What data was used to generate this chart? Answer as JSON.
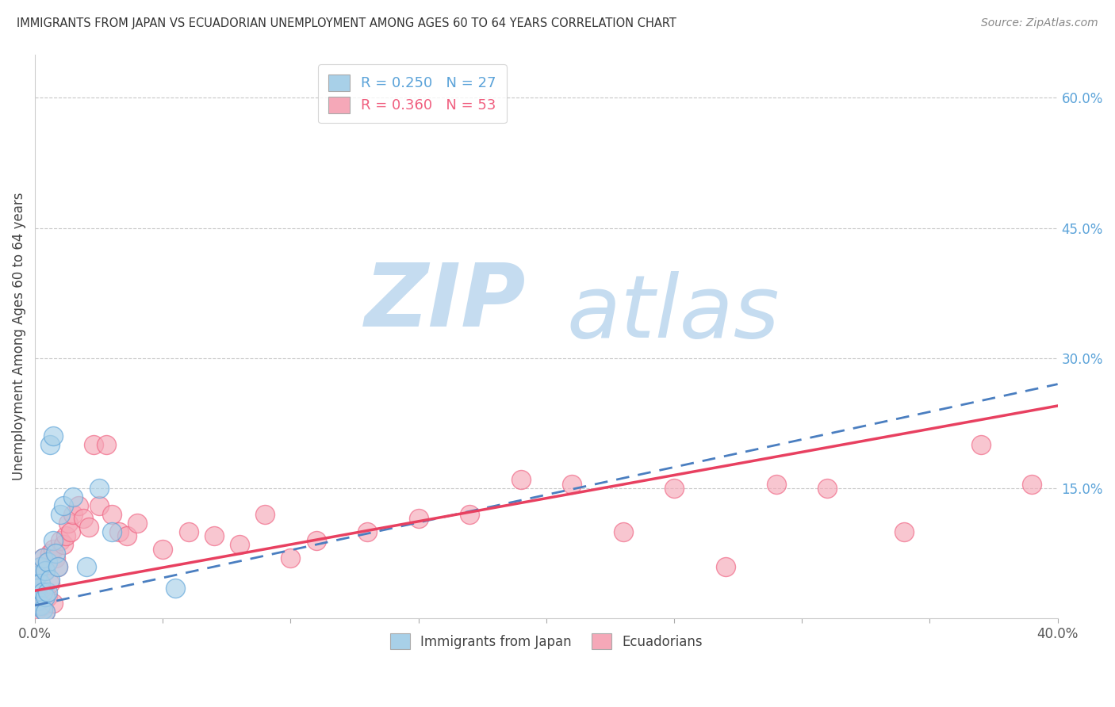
{
  "title": "IMMIGRANTS FROM JAPAN VS ECUADORIAN UNEMPLOYMENT AMONG AGES 60 TO 64 YEARS CORRELATION CHART",
  "source": "Source: ZipAtlas.com",
  "ylabel": "Unemployment Among Ages 60 to 64 years",
  "right_ytick_labels": [
    "15.0%",
    "30.0%",
    "45.0%",
    "60.0%"
  ],
  "right_ytick_values": [
    0.15,
    0.3,
    0.45,
    0.6
  ],
  "xlim": [
    0.0,
    0.4
  ],
  "ylim": [
    0.0,
    0.65
  ],
  "legend_label1": "Immigrants from Japan",
  "legend_label2": "Ecuadorians",
  "r1": "0.250",
  "n1": "27",
  "r2": "0.360",
  "n2": "53",
  "color_blue": "#A8D0E8",
  "color_pink": "#F5A8B8",
  "color_blue_dark": "#5BA3D9",
  "color_pink_dark": "#F06080",
  "color_blue_line": "#4A7EC0",
  "color_pink_line": "#E84060",
  "watermark_zip_color": "#C5DCF0",
  "watermark_atlas_color": "#C5DCF0",
  "background_color": "#FFFFFF",
  "japan_x": [
    0.001,
    0.001,
    0.001,
    0.002,
    0.002,
    0.002,
    0.003,
    0.003,
    0.003,
    0.004,
    0.004,
    0.004,
    0.005,
    0.005,
    0.006,
    0.006,
    0.007,
    0.007,
    0.008,
    0.009,
    0.01,
    0.011,
    0.015,
    0.02,
    0.025,
    0.03,
    0.055
  ],
  "japan_y": [
    0.05,
    0.035,
    0.02,
    0.06,
    0.04,
    0.015,
    0.07,
    0.03,
    0.01,
    0.055,
    0.025,
    0.008,
    0.065,
    0.03,
    0.2,
    0.045,
    0.21,
    0.09,
    0.075,
    0.06,
    0.12,
    0.13,
    0.14,
    0.06,
    0.15,
    0.1,
    0.035
  ],
  "ecuador_x": [
    0.001,
    0.001,
    0.001,
    0.002,
    0.002,
    0.003,
    0.003,
    0.004,
    0.004,
    0.005,
    0.005,
    0.006,
    0.006,
    0.007,
    0.007,
    0.008,
    0.009,
    0.01,
    0.011,
    0.012,
    0.013,
    0.014,
    0.015,
    0.017,
    0.019,
    0.021,
    0.023,
    0.025,
    0.028,
    0.03,
    0.033,
    0.036,
    0.04,
    0.05,
    0.06,
    0.07,
    0.08,
    0.09,
    0.1,
    0.11,
    0.13,
    0.15,
    0.17,
    0.19,
    0.21,
    0.23,
    0.25,
    0.27,
    0.29,
    0.31,
    0.34,
    0.37,
    0.39
  ],
  "ecuador_y": [
    0.05,
    0.03,
    0.01,
    0.06,
    0.02,
    0.07,
    0.015,
    0.055,
    0.008,
    0.065,
    0.025,
    0.075,
    0.04,
    0.08,
    0.018,
    0.07,
    0.06,
    0.09,
    0.085,
    0.095,
    0.11,
    0.1,
    0.12,
    0.13,
    0.115,
    0.105,
    0.2,
    0.13,
    0.2,
    0.12,
    0.1,
    0.095,
    0.11,
    0.08,
    0.1,
    0.095,
    0.085,
    0.12,
    0.07,
    0.09,
    0.1,
    0.115,
    0.12,
    0.16,
    0.155,
    0.1,
    0.15,
    0.06,
    0.155,
    0.15,
    0.1,
    0.2,
    0.155
  ],
  "japan_trend_x0": 0.0,
  "japan_trend_y0": 0.015,
  "japan_trend_x1": 0.4,
  "japan_trend_y1": 0.27,
  "ecuador_trend_x0": 0.0,
  "ecuador_trend_y0": 0.032,
  "ecuador_trend_x1": 0.4,
  "ecuador_trend_y1": 0.245
}
